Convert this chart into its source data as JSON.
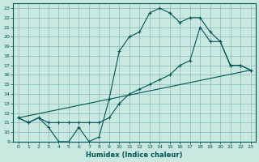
{
  "xlabel": "Humidex (Indice chaleur)",
  "xlim": [
    -0.5,
    23.5
  ],
  "ylim": [
    9,
    23.5
  ],
  "xticks": [
    0,
    1,
    2,
    3,
    4,
    5,
    6,
    7,
    8,
    9,
    10,
    11,
    12,
    13,
    14,
    15,
    16,
    17,
    18,
    19,
    20,
    21,
    22,
    23
  ],
  "yticks": [
    9,
    10,
    11,
    12,
    13,
    14,
    15,
    16,
    17,
    18,
    19,
    20,
    21,
    22,
    23
  ],
  "bg_color": "#c8e8e0",
  "grid_color": "#80b8b0",
  "line_color": "#005555",
  "line1_x": [
    0,
    1,
    2,
    3,
    4,
    5,
    6,
    7,
    8,
    9,
    10,
    11,
    12,
    13,
    14,
    15,
    16,
    17,
    18,
    19,
    20,
    21,
    22,
    23
  ],
  "line1_y": [
    11.5,
    11,
    11.5,
    10.5,
    9,
    9,
    10.5,
    9,
    9.5,
    13.5,
    18.5,
    20,
    20.5,
    22.5,
    23,
    22.5,
    21.5,
    22,
    22,
    20.5,
    19.5,
    17,
    17,
    16.5
  ],
  "line2_x": [
    0,
    1,
    2,
    3,
    4,
    5,
    6,
    7,
    8,
    9,
    10,
    11,
    12,
    13,
    14,
    15,
    16,
    17,
    18,
    19,
    20,
    21,
    22,
    23
  ],
  "line2_y": [
    11.5,
    11,
    11.5,
    11,
    11,
    11,
    11,
    11,
    11,
    11.5,
    13,
    14,
    14.5,
    15,
    15.5,
    16,
    17,
    17.5,
    21,
    19.5,
    19.5,
    17,
    17,
    16.5
  ],
  "line3_x": [
    0,
    23
  ],
  "line3_y": [
    11.5,
    16.5
  ]
}
